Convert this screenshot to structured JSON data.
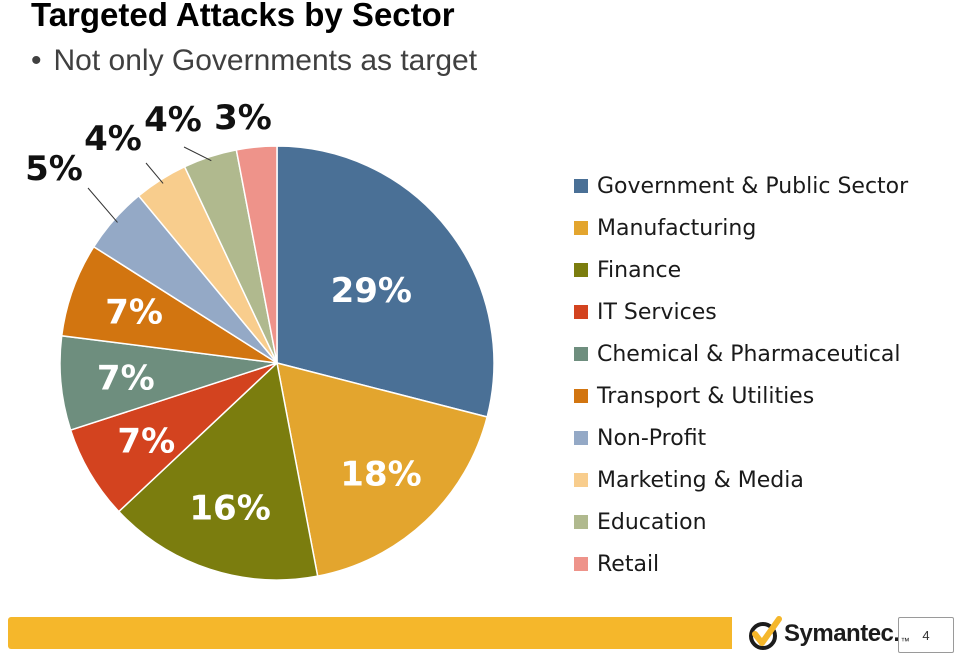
{
  "slide": {
    "title": "Targeted Attacks by Sector",
    "bullet": "Not only Governments as target",
    "page_number": "4",
    "logo_text": "Symantec.",
    "logo_tm": "™"
  },
  "colors": {
    "footer_bar": "#f5b72b",
    "logo_check": "#f5b72b"
  },
  "chart_data": {
    "type": "pie",
    "title": "",
    "legend_position": "right",
    "slices": [
      {
        "label": "Government & Public Sector",
        "value": 29,
        "display": "29%",
        "color": "#4a7096"
      },
      {
        "label": "Manufacturing",
        "value": 18,
        "display": "18%",
        "color": "#e3a52e"
      },
      {
        "label": "Finance",
        "value": 16,
        "display": "16%",
        "color": "#7b7d0e"
      },
      {
        "label": "IT Services",
        "value": 7,
        "display": "7%",
        "color": "#d3431f"
      },
      {
        "label": "Chemical & Pharmaceutical",
        "value": 7,
        "display": "7%",
        "color": "#6e8e7e"
      },
      {
        "label": "Transport & Utilities",
        "value": 7,
        "display": "7%",
        "color": "#d27510"
      },
      {
        "label": "Non-Profit",
        "value": 5,
        "display": "5%",
        "color": "#94a9c6"
      },
      {
        "label": "Marketing & Media",
        "value": 4,
        "display": "4%",
        "color": "#f8cd8d"
      },
      {
        "label": "Education",
        "value": 4,
        "display": "4%",
        "color": "#b0b98e"
      },
      {
        "label": "Retail",
        "value": 3,
        "display": "3%",
        "color": "#ee938a"
      }
    ]
  }
}
